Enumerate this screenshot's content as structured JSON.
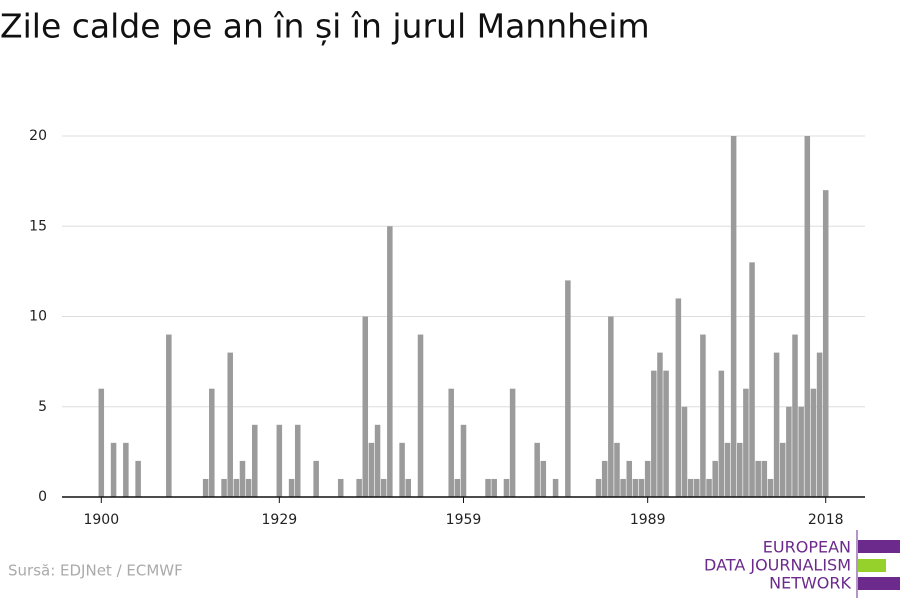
{
  "chart_data": {
    "type": "bar",
    "title": "Zile calde pe an în și în jurul Mannheim",
    "source": "Sursă: EDJNet / ECMWF",
    "logo": [
      "EUROPEAN",
      "DATA JOURNALISM",
      "NETWORK"
    ],
    "color": "#9b9b9b",
    "x": [
      1900,
      1901,
      1902,
      1903,
      1904,
      1905,
      1906,
      1907,
      1908,
      1909,
      1910,
      1911,
      1912,
      1913,
      1914,
      1915,
      1916,
      1917,
      1918,
      1919,
      1920,
      1921,
      1922,
      1923,
      1924,
      1925,
      1926,
      1927,
      1928,
      1929,
      1930,
      1931,
      1932,
      1933,
      1934,
      1935,
      1936,
      1937,
      1938,
      1939,
      1940,
      1941,
      1942,
      1943,
      1944,
      1945,
      1946,
      1947,
      1948,
      1949,
      1950,
      1951,
      1952,
      1953,
      1954,
      1955,
      1956,
      1957,
      1958,
      1959,
      1960,
      1961,
      1962,
      1963,
      1964,
      1965,
      1966,
      1967,
      1968,
      1969,
      1970,
      1971,
      1972,
      1973,
      1974,
      1975,
      1976,
      1977,
      1978,
      1979,
      1980,
      1981,
      1982,
      1983,
      1984,
      1985,
      1986,
      1987,
      1988,
      1989,
      1990,
      1991,
      1992,
      1993,
      1994,
      1995,
      1996,
      1997,
      1998,
      1999,
      2000,
      2001,
      2002,
      2003,
      2004,
      2005,
      2006,
      2007,
      2008,
      2009,
      2010,
      2011,
      2012,
      2013,
      2014,
      2015,
      2016,
      2017,
      2018
    ],
    "values": [
      6,
      0,
      3,
      0,
      3,
      0,
      2,
      0,
      0,
      0,
      0,
      9,
      0,
      0,
      0,
      0,
      0,
      1,
      6,
      0,
      1,
      8,
      1,
      2,
      1,
      4,
      0,
      0,
      0,
      4,
      0,
      1,
      4,
      0,
      0,
      2,
      0,
      0,
      0,
      1,
      0,
      0,
      1,
      10,
      3,
      4,
      1,
      15,
      0,
      3,
      1,
      0,
      9,
      0,
      0,
      0,
      0,
      6,
      1,
      4,
      0,
      0,
      0,
      1,
      1,
      0,
      1,
      6,
      0,
      0,
      0,
      3,
      2,
      0,
      1,
      0,
      12,
      0,
      0,
      0,
      0,
      1,
      2,
      10,
      3,
      1,
      2,
      1,
      1,
      2,
      7,
      8,
      7,
      0,
      11,
      5,
      1,
      1,
      9,
      1,
      2,
      7,
      3,
      20,
      3,
      6,
      13,
      2,
      2,
      1,
      8,
      3,
      5,
      9,
      5,
      20,
      6,
      8,
      17
    ],
    "xlim": [
      1893.6,
      2024.4
    ],
    "xticks": [
      1900,
      1929,
      1959,
      1989,
      2018
    ],
    "ylim": [
      0,
      20
    ],
    "yticks": [
      0,
      5,
      10,
      15,
      20
    ],
    "grid": true
  }
}
